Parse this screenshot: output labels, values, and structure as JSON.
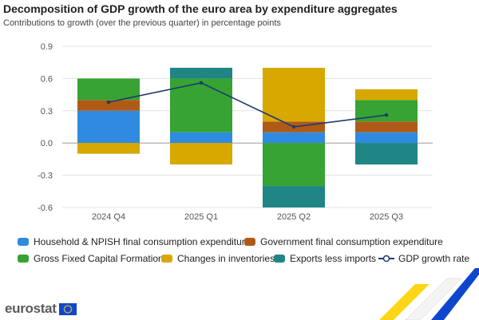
{
  "title": "Decomposition of GDP growth of the euro area by expenditure aggregates",
  "subtitle": "Contributions to growth (over the previous quarter) in percentage points",
  "brand": "eurostat",
  "colors": {
    "household": "#2e8be0",
    "government": "#b05a17",
    "gfcf": "#36a333",
    "inventories": "#d6a800",
    "exports": "#1f8585",
    "gdp": "#1f3a6e",
    "flag_blue": "#0e47cb",
    "flag_yellow": "#ffd617"
  },
  "chart_data": {
    "type": "bar",
    "stacked": true,
    "categories": [
      "2024 Q4",
      "2025 Q1",
      "2025 Q2",
      "2025 Q3"
    ],
    "ylim": [
      -0.6,
      0.9
    ],
    "yticks": [
      "-0.6",
      "-0.3",
      "0.0",
      "0.3",
      "0.6",
      "0.9"
    ],
    "ytick_values": [
      -0.6,
      -0.3,
      0.0,
      0.3,
      0.6,
      0.9
    ],
    "grid": true,
    "series": [
      {
        "name": "Household & NPISH final consumption expenditure",
        "key": "household",
        "values": [
          0.3,
          0.1,
          0.1,
          0.1
        ]
      },
      {
        "name": "Government final consumption expenditure",
        "key": "government",
        "values": [
          0.1,
          0.0,
          0.1,
          0.1
        ]
      },
      {
        "name": "Gross Fixed Capital Formation",
        "key": "gfcf",
        "values": [
          0.2,
          0.5,
          -0.4,
          0.2
        ]
      },
      {
        "name": "Changes in inventories",
        "key": "inventories",
        "values": [
          -0.1,
          -0.2,
          0.5,
          0.1
        ]
      },
      {
        "name": "Exports less imports",
        "key": "exports",
        "values": [
          0.0,
          0.1,
          -0.2,
          -0.2
        ]
      }
    ],
    "line": {
      "name": "GDP growth rate",
      "key": "gdp",
      "values": [
        0.38,
        0.56,
        0.15,
        0.26
      ]
    },
    "legend_position": "bottom"
  }
}
